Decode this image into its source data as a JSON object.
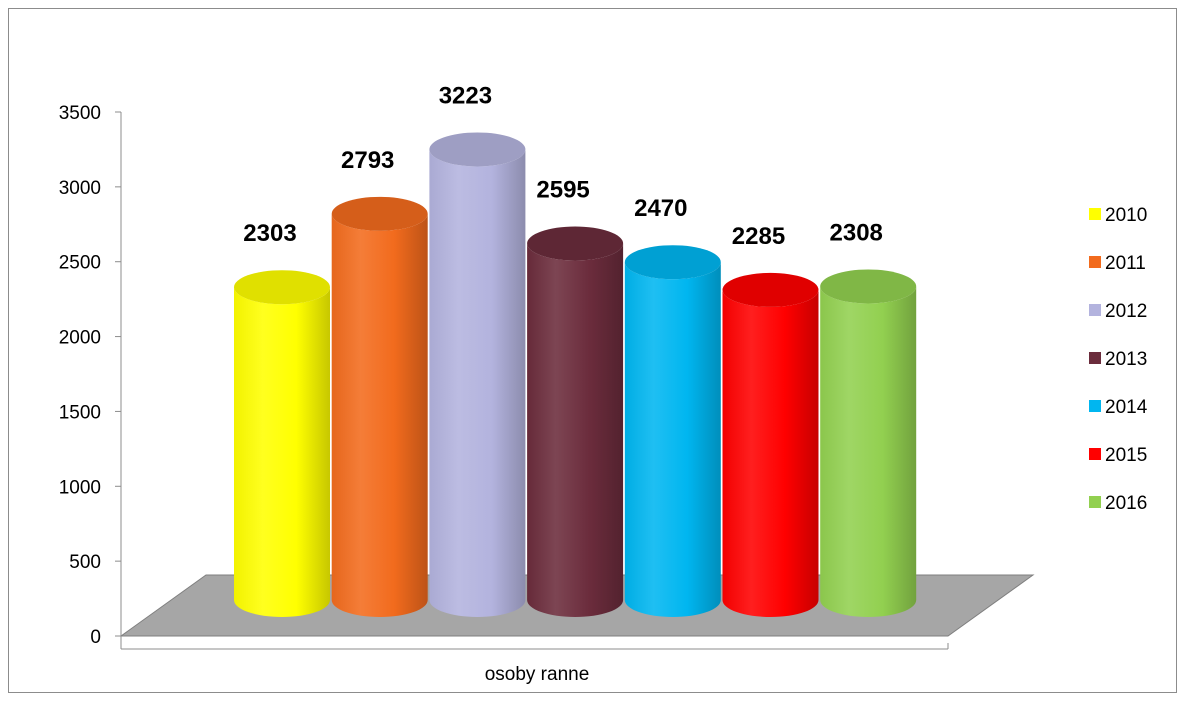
{
  "chart_data": {
    "type": "bar",
    "style": "3d-cylinder",
    "categories": [
      "osoby ranne"
    ],
    "series": [
      {
        "name": "2010",
        "values": [
          2303
        ],
        "color": "#ffff00"
      },
      {
        "name": "2011",
        "values": [
          2793
        ],
        "color": "#f26b1d"
      },
      {
        "name": "2012",
        "values": [
          3223
        ],
        "color": "#b3b3de"
      },
      {
        "name": "2013",
        "values": [
          2595
        ],
        "color": "#6b2c3c"
      },
      {
        "name": "2014",
        "values": [
          2470
        ],
        "color": "#00b6f0"
      },
      {
        "name": "2015",
        "values": [
          2285
        ],
        "color": "#ff0000"
      },
      {
        "name": "2016",
        "values": [
          2308
        ],
        "color": "#92d050"
      }
    ],
    "y_ticks": [
      "0",
      "500",
      "1000",
      "1500",
      "2000",
      "2500",
      "3000",
      "3500"
    ],
    "ylim": [
      0,
      3500
    ],
    "title": "",
    "xlabel": "",
    "ylabel": "",
    "legend_position": "right",
    "grid": false,
    "floor_color": "#a6a6a6"
  }
}
